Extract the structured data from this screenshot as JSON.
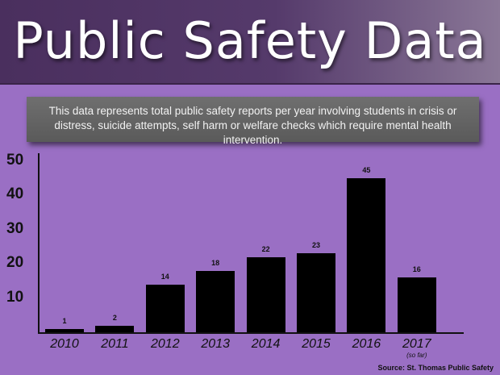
{
  "header": {
    "title": "Public Safety Data"
  },
  "note": {
    "text": "This data represents total public safety reports per year involving students in crisis or distress, suicide attempts, self harm or welfare checks which require mental health intervention."
  },
  "chart_data": {
    "type": "bar",
    "categories": [
      "2010",
      "2011",
      "2012",
      "2013",
      "2014",
      "2015",
      "2016",
      "2017"
    ],
    "category_notes": [
      "",
      "",
      "",
      "",
      "",
      "",
      "",
      "(so far)"
    ],
    "values": [
      1,
      2,
      14,
      18,
      22,
      23,
      45,
      16
    ],
    "data_labels": [
      "1",
      "2",
      "14",
      "18",
      "22",
      "23",
      "45",
      "16"
    ],
    "yticks": [
      10,
      20,
      30,
      40,
      50
    ],
    "ylim": [
      0,
      50
    ],
    "grid": false,
    "bar_color": "#000000",
    "background_color": "#9a6fc4"
  },
  "source": "Source: St. Thomas Public Safety"
}
